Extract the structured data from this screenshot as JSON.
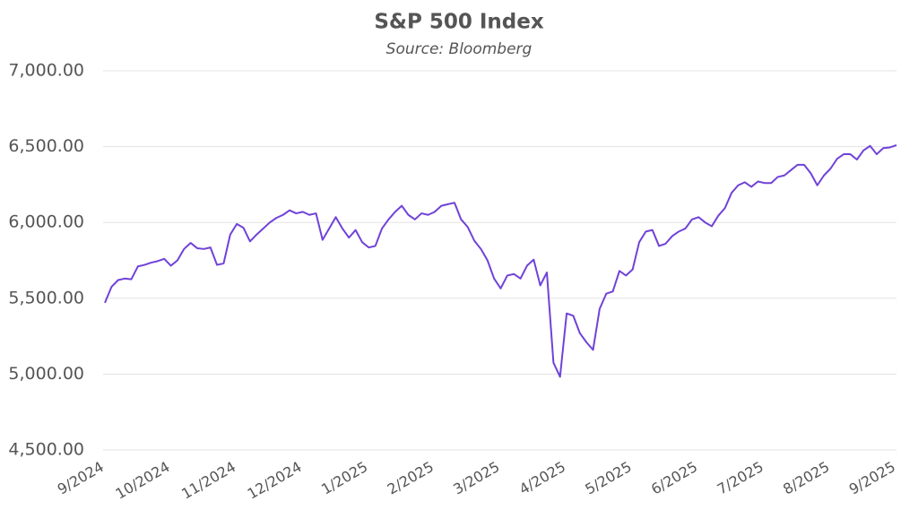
{
  "chart_data": {
    "type": "line",
    "title": "S&P 500 Index",
    "subtitle": "Source: Bloomberg",
    "categories": [
      "9/2024",
      null,
      null,
      null,
      null,
      null,
      null,
      null,
      null,
      null,
      "10/2024",
      null,
      null,
      null,
      null,
      null,
      null,
      null,
      null,
      null,
      "11/2024",
      null,
      null,
      null,
      null,
      null,
      null,
      null,
      null,
      null,
      "12/2024",
      null,
      null,
      null,
      null,
      null,
      null,
      null,
      null,
      null,
      "1/2025",
      null,
      null,
      null,
      null,
      null,
      null,
      null,
      null,
      null,
      "2/2025",
      null,
      null,
      null,
      null,
      null,
      null,
      null,
      null,
      null,
      "3/2025",
      null,
      null,
      null,
      null,
      null,
      null,
      null,
      null,
      null,
      "4/2025",
      null,
      null,
      null,
      null,
      null,
      null,
      null,
      null,
      null,
      "5/2025",
      null,
      null,
      null,
      null,
      null,
      null,
      null,
      null,
      null,
      "6/2025",
      null,
      null,
      null,
      null,
      null,
      null,
      null,
      null,
      null,
      "7/2025",
      null,
      null,
      null,
      null,
      null,
      null,
      null,
      null,
      null,
      "8/2025",
      null,
      null,
      null,
      null,
      null,
      null,
      null,
      null,
      null,
      "9/2025"
    ],
    "values": [
      5470,
      5575,
      5620,
      5630,
      5625,
      5710,
      5720,
      5735,
      5745,
      5760,
      5715,
      5750,
      5825,
      5865,
      5830,
      5825,
      5835,
      5720,
      5730,
      5920,
      5990,
      5965,
      5875,
      5920,
      5960,
      6000,
      6030,
      6050,
      6080,
      6060,
      6070,
      6050,
      6060,
      5885,
      5960,
      6035,
      5960,
      5900,
      5950,
      5870,
      5835,
      5845,
      5960,
      6020,
      6070,
      6110,
      6050,
      6020,
      6060,
      6050,
      6070,
      6110,
      6120,
      6130,
      6020,
      5970,
      5880,
      5825,
      5750,
      5630,
      5565,
      5650,
      5660,
      5630,
      5715,
      5755,
      5585,
      5670,
      5075,
      4982,
      5400,
      5385,
      5270,
      5210,
      5160,
      5430,
      5530,
      5545,
      5680,
      5650,
      5690,
      5870,
      5940,
      5950,
      5845,
      5860,
      5910,
      5940,
      5960,
      6020,
      6035,
      6000,
      5975,
      6045,
      6095,
      6195,
      6245,
      6265,
      6235,
      6270,
      6260,
      6260,
      6300,
      6310,
      6345,
      6380,
      6380,
      6325,
      6245,
      6310,
      6355,
      6420,
      6450,
      6450,
      6415,
      6475,
      6505,
      6450,
      6490,
      6495,
      6510
    ],
    "color": "#7042d8",
    "ylim": [
      4500,
      7000
    ],
    "yticks": [
      {
        "value": 4500,
        "label": "4,500.00"
      },
      {
        "value": 5000,
        "label": "5,000.00"
      },
      {
        "value": 5500,
        "label": "5,500.00"
      },
      {
        "value": 6000,
        "label": "6,000.00"
      },
      {
        "value": 6500,
        "label": "6,500.00"
      },
      {
        "value": 7000,
        "label": "7,000.00"
      }
    ],
    "grid": true
  }
}
